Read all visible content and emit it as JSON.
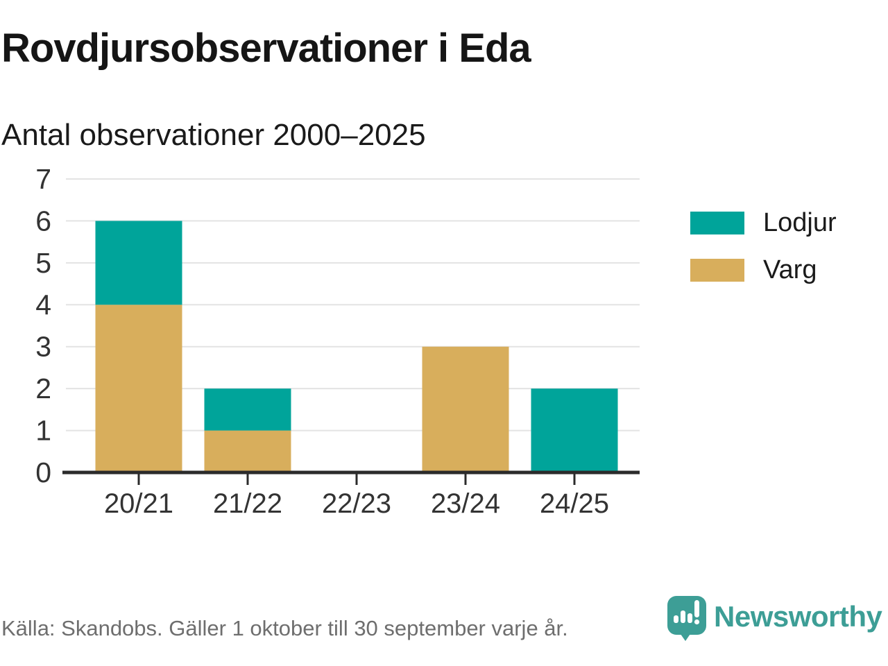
{
  "header": {
    "title": "Rovdjursobservationer i Eda",
    "subtitle": "Antal observationer 2000–2025"
  },
  "chart_data": {
    "type": "bar",
    "stacked": true,
    "title": "Rovdjursobservationer i Eda",
    "subtitle": "Antal observationer 2000–2025",
    "categories": [
      "20/21",
      "21/22",
      "22/23",
      "23/24",
      "24/25"
    ],
    "series": [
      {
        "name": "Lodjur",
        "color": "#00A49A",
        "values": [
          2,
          1,
          0,
          0,
          2
        ]
      },
      {
        "name": "Varg",
        "color": "#D8AE5C",
        "values": [
          4,
          1,
          0,
          3,
          0
        ]
      }
    ],
    "stack_order_bottom_to_top": [
      "Varg",
      "Lodjur"
    ],
    "totals": [
      6,
      2,
      0,
      3,
      2
    ],
    "xlabel": "",
    "ylabel": "",
    "ylim": [
      0,
      7
    ],
    "yticks": [
      0,
      1,
      2,
      3,
      4,
      5,
      6,
      7
    ],
    "grid": true,
    "legend_position": "right"
  },
  "colors": {
    "grid": "#E3E3E3",
    "axis_line": "#2B2B2B",
    "axis_text": "#333333",
    "title_text": "#151515",
    "source_text": "#6E6E6E",
    "brand_teal": "#3D9E96"
  },
  "footer": {
    "source": "Källa: Skandobs. Gäller 1 oktober till 30 september varje år.",
    "brand": "Newsworthy"
  }
}
